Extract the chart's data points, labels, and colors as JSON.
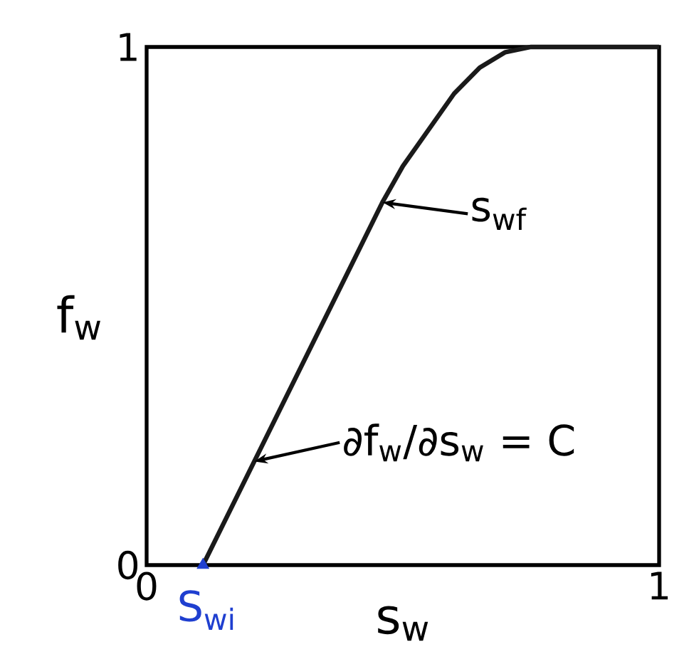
{
  "chart_data": {
    "type": "line",
    "xlabel": "s$_{w}$",
    "ylabel": "f$_{w}$",
    "xlim": [
      0,
      1
    ],
    "ylim": [
      0,
      1
    ],
    "xticks": [
      0,
      1
    ],
    "yticks": [
      0,
      1
    ],
    "series": [
      {
        "color": "#1a1a1a",
        "x": [
          0.11,
          0.46,
          0.5,
          0.55,
          0.6,
          0.65,
          0.7,
          0.75,
          0.8,
          1.0
        ],
        "values": [
          0,
          0.7,
          0.77,
          0.84,
          0.91,
          0.96,
          0.99,
          1.0,
          1.0,
          1.0
        ]
      },
      {
        "type": "scatter",
        "color": "#1f3fd0",
        "x": [
          0.11
        ],
        "values": [
          0
        ]
      }
    ],
    "annotations": [
      {
        "text": "s$_{wf}$",
        "x": 0.46,
        "y": 0.7
      },
      {
        "text": "∂f$_{w}$/∂s$_{w}$ = C",
        "x": 0.21,
        "y": 0.2
      },
      {
        "text": "S$_{wi}$",
        "x": 0.11,
        "y": 0
      }
    ]
  }
}
